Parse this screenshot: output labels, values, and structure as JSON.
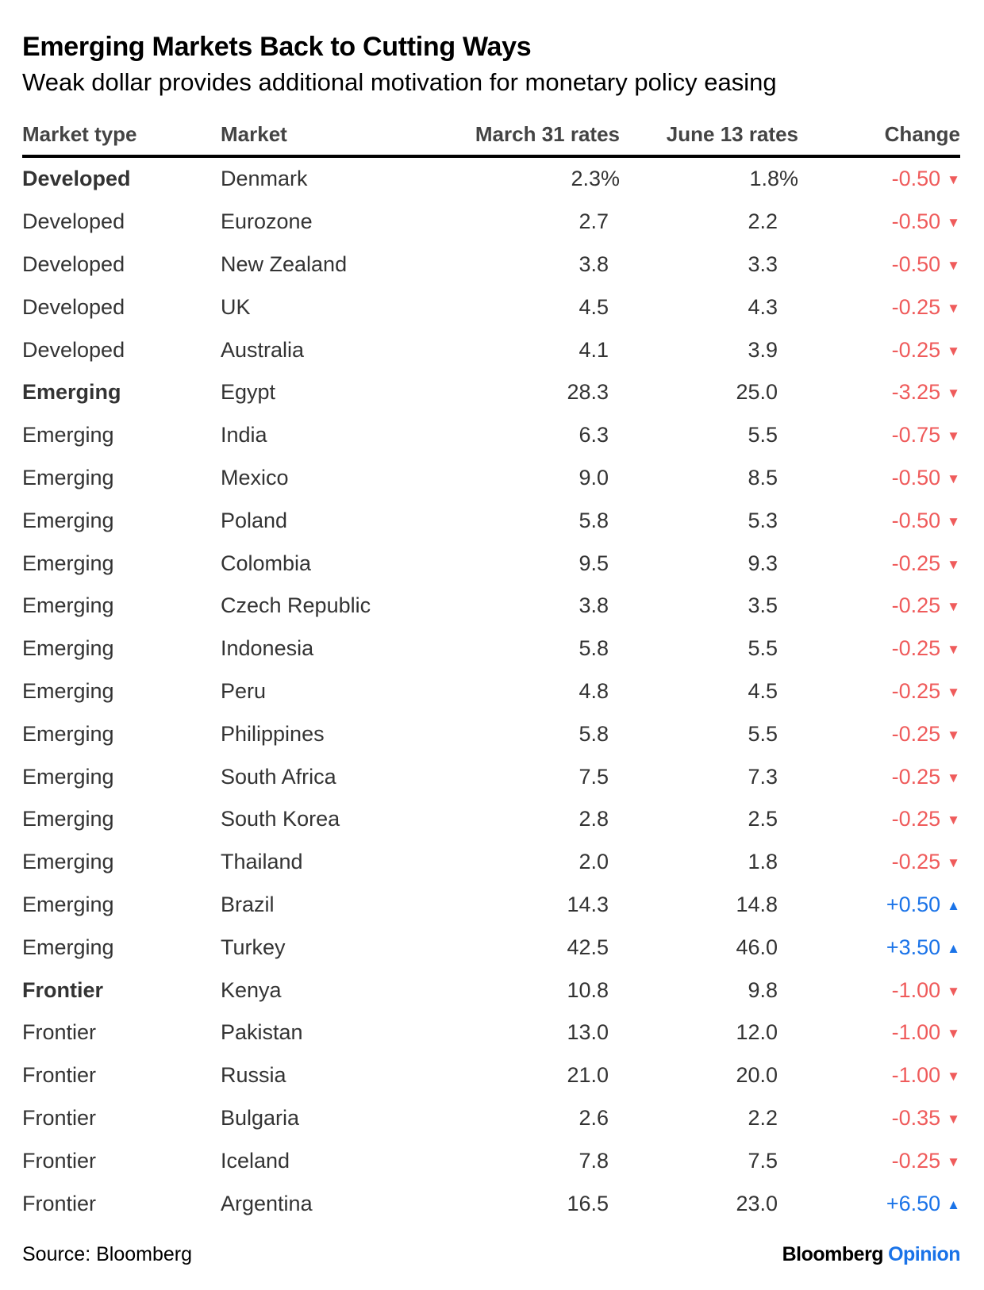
{
  "title": "Emerging Markets Back to Cutting Ways",
  "subtitle": "Weak dollar provides additional motivation for monetary policy easing",
  "source": "Source: Bloomberg",
  "brand": {
    "name": "Bloomberg",
    "suffix": "Opinion"
  },
  "colors": {
    "negative": "#ef5b5b",
    "positive": "#1a73e8",
    "brand_accent": "#1a73e8"
  },
  "chart_data": {
    "type": "table",
    "columns": [
      "Market type",
      "Market",
      "March 31 rates",
      "June 13 rates",
      "Change"
    ],
    "rows": [
      {
        "type": "Developed",
        "market": "Denmark",
        "mar": "2.3%",
        "jun": "1.8%",
        "change": "-0.50",
        "dir": "down",
        "group_first": true
      },
      {
        "type": "Developed",
        "market": "Eurozone",
        "mar": "2.7",
        "jun": "2.2",
        "change": "-0.50",
        "dir": "down"
      },
      {
        "type": "Developed",
        "market": "New Zealand",
        "mar": "3.8",
        "jun": "3.3",
        "change": "-0.50",
        "dir": "down"
      },
      {
        "type": "Developed",
        "market": "UK",
        "mar": "4.5",
        "jun": "4.3",
        "change": "-0.25",
        "dir": "down"
      },
      {
        "type": "Developed",
        "market": "Australia",
        "mar": "4.1",
        "jun": "3.9",
        "change": "-0.25",
        "dir": "down"
      },
      {
        "type": "Emerging",
        "market": "Egypt",
        "mar": "28.3",
        "jun": "25.0",
        "change": "-3.25",
        "dir": "down",
        "group_first": true
      },
      {
        "type": "Emerging",
        "market": "India",
        "mar": "6.3",
        "jun": "5.5",
        "change": "-0.75",
        "dir": "down"
      },
      {
        "type": "Emerging",
        "market": "Mexico",
        "mar": "9.0",
        "jun": "8.5",
        "change": "-0.50",
        "dir": "down"
      },
      {
        "type": "Emerging",
        "market": "Poland",
        "mar": "5.8",
        "jun": "5.3",
        "change": "-0.50",
        "dir": "down"
      },
      {
        "type": "Emerging",
        "market": "Colombia",
        "mar": "9.5",
        "jun": "9.3",
        "change": "-0.25",
        "dir": "down"
      },
      {
        "type": "Emerging",
        "market": "Czech Republic",
        "mar": "3.8",
        "jun": "3.5",
        "change": "-0.25",
        "dir": "down"
      },
      {
        "type": "Emerging",
        "market": "Indonesia",
        "mar": "5.8",
        "jun": "5.5",
        "change": "-0.25",
        "dir": "down"
      },
      {
        "type": "Emerging",
        "market": "Peru",
        "mar": "4.8",
        "jun": "4.5",
        "change": "-0.25",
        "dir": "down"
      },
      {
        "type": "Emerging",
        "market": "Philippines",
        "mar": "5.8",
        "jun": "5.5",
        "change": "-0.25",
        "dir": "down"
      },
      {
        "type": "Emerging",
        "market": "South Africa",
        "mar": "7.5",
        "jun": "7.3",
        "change": "-0.25",
        "dir": "down"
      },
      {
        "type": "Emerging",
        "market": "South Korea",
        "mar": "2.8",
        "jun": "2.5",
        "change": "-0.25",
        "dir": "down"
      },
      {
        "type": "Emerging",
        "market": "Thailand",
        "mar": "2.0",
        "jun": "1.8",
        "change": "-0.25",
        "dir": "down"
      },
      {
        "type": "Emerging",
        "market": "Brazil",
        "mar": "14.3",
        "jun": "14.8",
        "change": "+0.50",
        "dir": "up"
      },
      {
        "type": "Emerging",
        "market": "Turkey",
        "mar": "42.5",
        "jun": "46.0",
        "change": "+3.50",
        "dir": "up"
      },
      {
        "type": "Frontier",
        "market": "Kenya",
        "mar": "10.8",
        "jun": "9.8",
        "change": "-1.00",
        "dir": "down",
        "group_first": true
      },
      {
        "type": "Frontier",
        "market": "Pakistan",
        "mar": "13.0",
        "jun": "12.0",
        "change": "-1.00",
        "dir": "down"
      },
      {
        "type": "Frontier",
        "market": "Russia",
        "mar": "21.0",
        "jun": "20.0",
        "change": "-1.00",
        "dir": "down"
      },
      {
        "type": "Frontier",
        "market": "Bulgaria",
        "mar": "2.6",
        "jun": "2.2",
        "change": "-0.35",
        "dir": "down"
      },
      {
        "type": "Frontier",
        "market": "Iceland",
        "mar": "7.8",
        "jun": "7.5",
        "change": "-0.25",
        "dir": "down"
      },
      {
        "type": "Frontier",
        "market": "Argentina",
        "mar": "16.5",
        "jun": "23.0",
        "change": "+6.50",
        "dir": "up"
      }
    ]
  }
}
